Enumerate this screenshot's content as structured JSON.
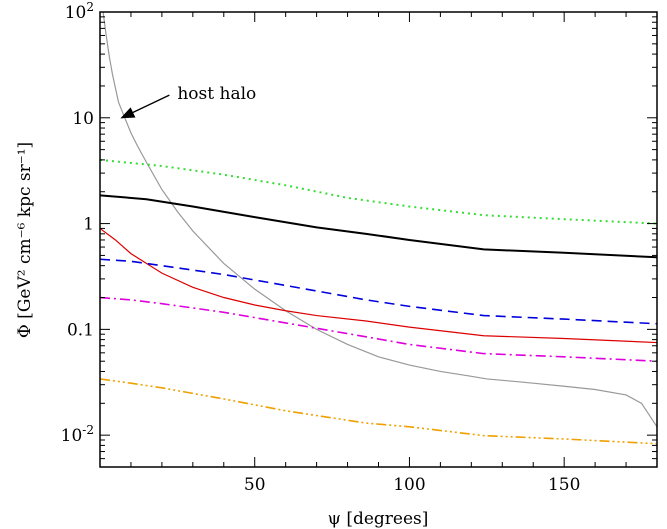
{
  "chart_data": {
    "type": "line",
    "xlabel": "ψ [degrees]",
    "ylabel": "Φ [GeV² cm⁻⁶ kpc sr⁻¹]",
    "xlim": [
      0,
      180
    ],
    "ylim": [
      0.005,
      100
    ],
    "yscale": "log",
    "grid": false,
    "x_ticks": [
      {
        "value": 50,
        "label": "50"
      },
      {
        "value": 100,
        "label": "100"
      },
      {
        "value": 150,
        "label": "150"
      }
    ],
    "y_ticks": [
      {
        "value": 0.01,
        "base": "10",
        "exp": "-2",
        "label": "10^-2"
      },
      {
        "value": 0.1,
        "base": "0.1",
        "exp": "",
        "label": "0.1"
      },
      {
        "value": 1,
        "base": "1",
        "exp": "",
        "label": "1"
      },
      {
        "value": 10,
        "base": "10",
        "exp": "",
        "label": "10"
      },
      {
        "value": 100,
        "base": "10",
        "exp": "2",
        "label": "10^2"
      }
    ],
    "annotations": [
      {
        "text": "host halo",
        "x": 25,
        "y": 15,
        "arrow_to": [
          7,
          10
        ]
      }
    ],
    "series": [
      {
        "color": "#999999",
        "dash": "",
        "width": 1.2,
        "x": [
          1,
          2,
          3,
          4,
          5,
          6,
          8,
          10,
          12,
          15,
          20,
          25,
          30,
          40,
          50,
          60,
          70,
          80,
          90,
          100,
          110,
          120,
          125,
          130,
          140,
          150,
          160,
          170,
          175,
          180
        ],
        "y": [
          100,
          60,
          38,
          26,
          19,
          14,
          10,
          7.2,
          5.5,
          3.8,
          2.1,
          1.3,
          0.85,
          0.42,
          0.24,
          0.15,
          0.1,
          0.072,
          0.055,
          0.046,
          0.04,
          0.036,
          0.034,
          0.033,
          0.031,
          0.029,
          0.027,
          0.024,
          0.02,
          0.012
        ]
      },
      {
        "color": "#33dd33",
        "dash": "2,4",
        "width": 2,
        "x": [
          0,
          20,
          40,
          60,
          80,
          100,
          124,
          150,
          180
        ],
        "y": [
          4.0,
          3.5,
          2.9,
          2.3,
          1.75,
          1.45,
          1.2,
          1.1,
          1.0
        ]
      },
      {
        "color": "#000000",
        "dash": "",
        "width": 2,
        "x": [
          0,
          15,
          30,
          50,
          70,
          86,
          100,
          124,
          150,
          180
        ],
        "y": [
          1.85,
          1.7,
          1.45,
          1.15,
          0.92,
          0.8,
          0.7,
          0.57,
          0.53,
          0.48
        ]
      },
      {
        "color": "#dd0000",
        "dash": "",
        "width": 1.2,
        "x": [
          0,
          5,
          10,
          15,
          20,
          30,
          40,
          50,
          60,
          70,
          86,
          100,
          124,
          150,
          180
        ],
        "y": [
          0.9,
          0.7,
          0.52,
          0.42,
          0.34,
          0.25,
          0.2,
          0.17,
          0.15,
          0.135,
          0.12,
          0.105,
          0.087,
          0.082,
          0.075
        ]
      },
      {
        "color": "#0000dd",
        "dash": "10,6",
        "width": 1.6,
        "x": [
          0,
          10,
          20,
          40,
          60,
          86,
          100,
          124,
          150,
          180
        ],
        "y": [
          0.46,
          0.44,
          0.4,
          0.33,
          0.26,
          0.19,
          0.165,
          0.135,
          0.125,
          0.113
        ]
      },
      {
        "color": "#dd00dd",
        "dash": "10,4,2,4",
        "width": 1.6,
        "x": [
          0,
          10,
          20,
          40,
          60,
          86,
          100,
          124,
          150,
          180
        ],
        "y": [
          0.2,
          0.19,
          0.175,
          0.145,
          0.115,
          0.085,
          0.072,
          0.059,
          0.055,
          0.05
        ]
      },
      {
        "color": "#f0a000",
        "dash": "10,3,2,3,2,3,2,3",
        "width": 1.6,
        "x": [
          0,
          10,
          20,
          40,
          60,
          86,
          100,
          124,
          150,
          180
        ],
        "y": [
          0.034,
          0.031,
          0.028,
          0.022,
          0.017,
          0.013,
          0.012,
          0.0099,
          0.0092,
          0.0083
        ]
      }
    ]
  }
}
